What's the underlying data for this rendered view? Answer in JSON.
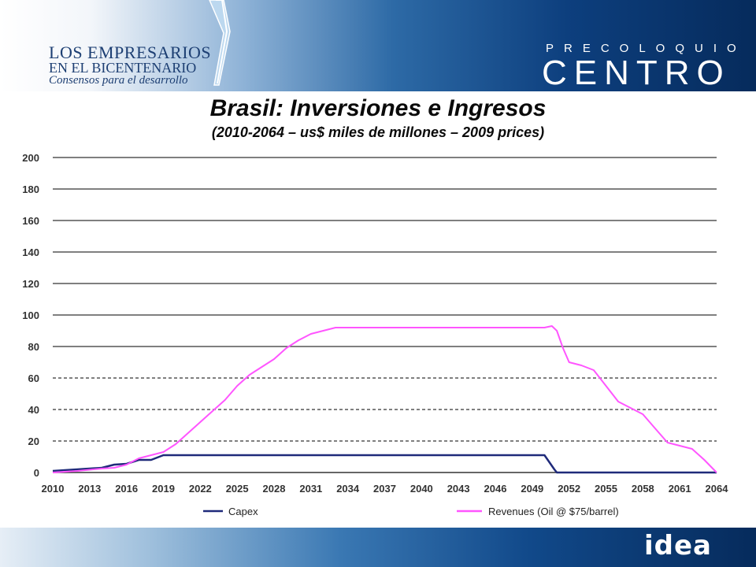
{
  "header": {
    "brand_line1": "LOS EMPRESARIOS",
    "brand_line2": "EN EL BICENTENARIO",
    "brand_tagline": "Consensos para el desarrollo",
    "event_small": "PRECOLOQUIO",
    "event_large": "CENTRO"
  },
  "footer": {
    "logo_text": "idea"
  },
  "colors": {
    "capex": "#1f2a7a",
    "revenues": "#ff55ff",
    "header_dark": "#062b5c"
  },
  "chart_data": {
    "type": "line",
    "title": "Brasil: Inversiones e Ingresos",
    "subtitle": "(2010-2064 – us$ miles de millones – 2009 prices)",
    "xlabel": "",
    "ylabel": "",
    "xlim": [
      2010,
      2064
    ],
    "ylim": [
      0,
      200
    ],
    "y_ticks": [
      0,
      20,
      40,
      60,
      80,
      100,
      120,
      140,
      160,
      180,
      200
    ],
    "x_ticks": [
      2010,
      2013,
      2016,
      2019,
      2022,
      2025,
      2028,
      2031,
      2034,
      2037,
      2040,
      2043,
      2046,
      2049,
      2052,
      2055,
      2058,
      2061,
      2064
    ],
    "grid": "horizontal; dashed at 20, 40, 60",
    "legend_position": "bottom",
    "series": [
      {
        "name": "Capex",
        "color": "#1f2a7a",
        "x": [
          2010,
          2011,
          2012,
          2013,
          2014,
          2015,
          2016,
          2017,
          2018,
          2019,
          2020,
          2030,
          2040,
          2050,
          2050.8,
          2051,
          2064
        ],
        "y": [
          1,
          1.5,
          2,
          2.5,
          3,
          5,
          5.5,
          8,
          8,
          11,
          11,
          11,
          11,
          11,
          2,
          0,
          0
        ]
      },
      {
        "name": "Revenues (Oil @ $75/barrel)",
        "color": "#ff55ff",
        "x": [
          2010,
          2012,
          2014,
          2015,
          2016,
          2017,
          2018,
          2019,
          2020,
          2021,
          2022,
          2023,
          2024,
          2025,
          2026,
          2027,
          2028,
          2029,
          2030,
          2031,
          2032,
          2033,
          2050,
          2050.6,
          2051,
          2051.5,
          2052,
          2053,
          2054,
          2055,
          2056,
          2057,
          2058,
          2059,
          2060,
          2061,
          2062,
          2063,
          2064
        ],
        "y": [
          0,
          1,
          2.5,
          3,
          5,
          9,
          11,
          13,
          18,
          25,
          32,
          39,
          46,
          55,
          62,
          67,
          72,
          79,
          84,
          88,
          90,
          92,
          92,
          93,
          90,
          79,
          70,
          68,
          65,
          55,
          45,
          41,
          37,
          28,
          19,
          17,
          15,
          8,
          0
        ]
      }
    ]
  }
}
